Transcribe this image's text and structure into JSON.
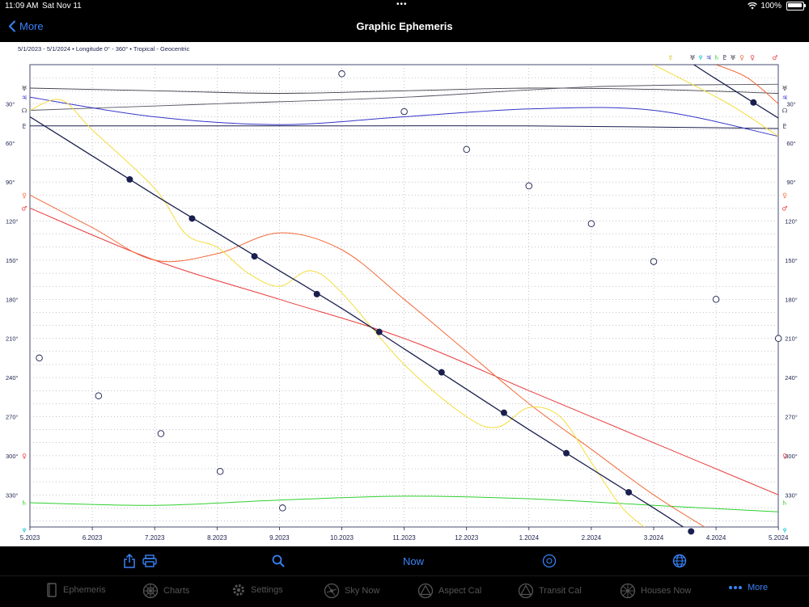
{
  "status": {
    "time": "11:09 AM",
    "date": "Sat Nov 11",
    "battery": "100%"
  },
  "nav": {
    "back_label": "More",
    "title": "Graphic Ephemeris"
  },
  "chart": {
    "subtitle": "5/1/2023 - 5/1/2024  •  Longitude  0° - 360°  •  Tropical - Geocentric"
  },
  "chart_data": {
    "type": "line",
    "x_ticks": [
      "5.2023",
      "6.2023",
      "7.2023",
      "8.2023",
      "9.2023",
      "10.2023",
      "11.2023",
      "12.2023",
      "1.2024",
      "2.2024",
      "3.2024",
      "4.2024",
      "5.2024"
    ],
    "y_ticks": [
      "30°",
      "60°",
      "90°",
      "120°",
      "150°",
      "180°",
      "210°",
      "240°",
      "270°",
      "300°",
      "330°"
    ],
    "ylim": [
      0,
      360
    ],
    "y_direction": "down",
    "grid": true,
    "planets": {
      "sun": {
        "color": "#1a1f4d",
        "marker": "filled-circle",
        "values": [
          [
            0,
            40
          ],
          [
            1,
            70
          ],
          [
            2,
            100
          ],
          [
            3,
            129
          ],
          [
            4,
            158
          ],
          [
            5,
            187
          ],
          [
            6,
            218
          ],
          [
            7,
            249
          ],
          [
            8,
            280
          ],
          [
            9,
            310
          ],
          [
            10,
            340
          ],
          [
            11,
            11
          ],
          [
            12,
            41
          ]
        ]
      },
      "moon": {
        "color": "#1a1f4d",
        "marker": "open-circle",
        "values": [
          [
            0.15,
            225
          ],
          [
            1.1,
            254
          ],
          [
            2.1,
            283
          ],
          [
            3.05,
            312
          ],
          [
            4.05,
            340
          ],
          [
            5,
            7
          ],
          [
            6,
            36
          ],
          [
            7,
            65
          ],
          [
            8,
            93
          ],
          [
            9,
            122
          ],
          [
            10,
            151
          ],
          [
            11,
            180
          ],
          [
            12,
            210
          ]
        ]
      },
      "mercury": {
        "color": "#f3dd3c",
        "values": [
          [
            0,
            35
          ],
          [
            0.5,
            27
          ],
          [
            1,
            50
          ],
          [
            2,
            95
          ],
          [
            2.5,
            130
          ],
          [
            3,
            140
          ],
          [
            3.5,
            160
          ],
          [
            4,
            170
          ],
          [
            4.5,
            158
          ],
          [
            5,
            175
          ],
          [
            6,
            230
          ],
          [
            7,
            270
          ],
          [
            7.5,
            278
          ],
          [
            8,
            263
          ],
          [
            8.5,
            270
          ],
          [
            9,
            305
          ],
          [
            9.5,
            340
          ],
          [
            10,
            360
          ],
          [
            11.2,
            30
          ],
          [
            12,
            55
          ]
        ]
      },
      "venus": {
        "color": "#f26b3a",
        "values": [
          [
            0,
            100
          ],
          [
            1,
            125
          ],
          [
            2,
            150
          ],
          [
            3,
            145
          ],
          [
            4,
            129
          ],
          [
            5,
            142
          ],
          [
            6,
            180
          ],
          [
            7,
            220
          ],
          [
            8,
            260
          ],
          [
            9,
            295
          ],
          [
            10,
            330
          ],
          [
            11,
            360
          ],
          [
            11.5,
            10
          ],
          [
            12,
            30
          ]
        ]
      },
      "mars": {
        "color": "#e83c3c",
        "values": [
          [
            0,
            110
          ],
          [
            2,
            150
          ],
          [
            4,
            180
          ],
          [
            6,
            210
          ],
          [
            8,
            250
          ],
          [
            10,
            290
          ],
          [
            12,
            330
          ]
        ]
      },
      "jupiter": {
        "color": "#3434c8",
        "values": [
          [
            0,
            25
          ],
          [
            2,
            40
          ],
          [
            4,
            46
          ],
          [
            6,
            40
          ],
          [
            8,
            34
          ],
          [
            10,
            35
          ],
          [
            12,
            55
          ]
        ]
      },
      "saturn": {
        "color": "#2fcf2f",
        "values": [
          [
            0,
            336
          ],
          [
            2,
            338
          ],
          [
            4,
            334
          ],
          [
            6,
            331
          ],
          [
            8,
            333
          ],
          [
            10,
            338
          ],
          [
            12,
            343
          ]
        ]
      },
      "uranus": {
        "color": "#3f3f4a",
        "values": [
          [
            0,
            18
          ],
          [
            2,
            20
          ],
          [
            4,
            22
          ],
          [
            6,
            20
          ],
          [
            8,
            18
          ],
          [
            10,
            19
          ],
          [
            12,
            22
          ]
        ]
      },
      "neptune": {
        "color": "#1fc7d6",
        "values": [
          [
            0,
            357
          ],
          [
            4,
            356
          ],
          [
            8,
            355
          ],
          [
            12,
            357
          ]
        ]
      },
      "pluto": {
        "color": "#1a1f4d",
        "values": [
          [
            0,
            47
          ],
          [
            4,
            47
          ],
          [
            8,
            47
          ],
          [
            12,
            49
          ]
        ]
      },
      "node": {
        "color": "#555566",
        "values": [
          [
            0,
            35
          ],
          [
            3,
            30
          ],
          [
            6,
            25
          ],
          [
            9,
            17
          ],
          [
            12,
            15
          ]
        ]
      }
    }
  },
  "toolbar": {
    "now_label": "Now"
  },
  "tabs": [
    {
      "label": "Ephemeris",
      "icon": "book-icon"
    },
    {
      "label": "Charts",
      "icon": "wheel-icon"
    },
    {
      "label": "Settings",
      "icon": "gear-icon"
    },
    {
      "label": "Sky Now",
      "icon": "sky-icon"
    },
    {
      "label": "Aspect Cal",
      "icon": "triangle-icon"
    },
    {
      "label": "Transit Cal",
      "icon": "triangle-icon"
    },
    {
      "label": "Houses Now",
      "icon": "houses-icon"
    },
    {
      "label": "More",
      "icon": "more-icon"
    }
  ]
}
